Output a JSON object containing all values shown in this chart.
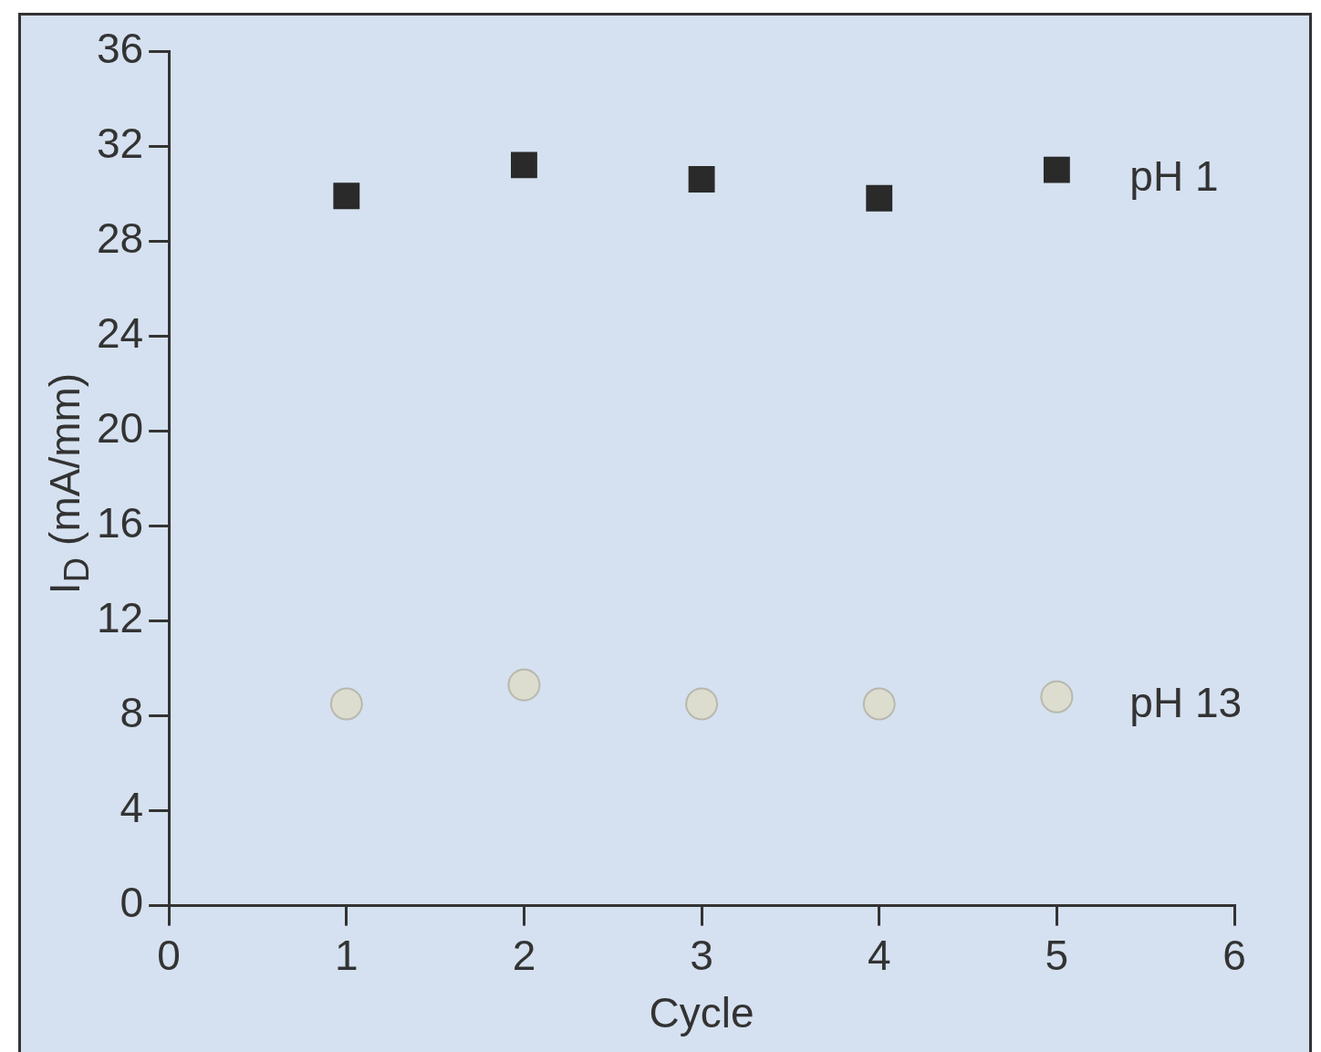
{
  "chart_data": {
    "type": "scatter",
    "xlabel": "Cycle",
    "ylabel": "I$_{D}$ (mA/mm)",
    "xlim": [
      0,
      6
    ],
    "xticks": [
      0,
      1,
      2,
      3,
      4,
      5,
      6
    ],
    "ylim": [
      0,
      36
    ],
    "yticks": [
      0,
      4,
      8,
      12,
      16,
      20,
      24,
      28,
      32,
      36
    ],
    "grid": false,
    "legend": false,
    "series": [
      {
        "name": "pH 1",
        "color": "#2a2a2a",
        "marker": "square",
        "x": [
          1,
          2,
          3,
          4,
          5
        ],
        "values": [
          29.9,
          31.2,
          30.6,
          29.8,
          31.0
        ]
      },
      {
        "name": "pH 13",
        "color": "#dcdccf",
        "marker": "circle",
        "x": [
          1,
          2,
          3,
          4,
          5
        ],
        "values": [
          8.5,
          9.3,
          8.5,
          8.5,
          8.8
        ]
      }
    ]
  }
}
